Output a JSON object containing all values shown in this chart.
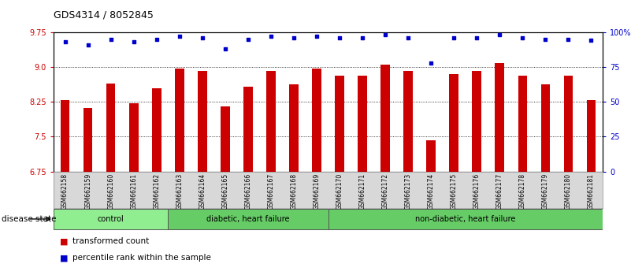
{
  "title": "GDS4314 / 8052845",
  "samples": [
    "GSM662158",
    "GSM662159",
    "GSM662160",
    "GSM662161",
    "GSM662162",
    "GSM662163",
    "GSM662164",
    "GSM662165",
    "GSM662166",
    "GSM662167",
    "GSM662168",
    "GSM662169",
    "GSM662170",
    "GSM662171",
    "GSM662172",
    "GSM662173",
    "GSM662174",
    "GSM662175",
    "GSM662176",
    "GSM662177",
    "GSM662178",
    "GSM662179",
    "GSM662180",
    "GSM662181"
  ],
  "bar_values": [
    8.28,
    8.12,
    8.65,
    8.22,
    8.55,
    8.97,
    8.92,
    8.15,
    8.58,
    8.92,
    8.62,
    8.97,
    8.82,
    8.82,
    9.05,
    8.92,
    7.42,
    8.85,
    8.92,
    9.08,
    8.82,
    8.62,
    8.82,
    8.28
  ],
  "percentile_values": [
    93,
    91,
    95,
    93,
    95,
    97,
    96,
    88,
    95,
    97,
    96,
    97,
    96,
    96,
    98,
    96,
    78,
    96,
    96,
    98,
    96,
    95,
    95,
    94
  ],
  "group_labels": [
    "control",
    "diabetic, heart failure",
    "non-diabetic, heart failure"
  ],
  "group_ranges": [
    [
      0,
      5
    ],
    [
      5,
      12
    ],
    [
      12,
      24
    ]
  ],
  "group_colors": [
    "#90ee90",
    "#66cc66",
    "#66cc66"
  ],
  "ylim_left": [
    6.75,
    9.75
  ],
  "yticks_left": [
    6.75,
    7.5,
    8.25,
    9.0,
    9.75
  ],
  "ylim_right": [
    0,
    100
  ],
  "yticks_right": [
    0,
    25,
    50,
    75,
    100
  ],
  "bar_color": "#cc0000",
  "dot_color": "#0000cc",
  "bar_width": 0.4,
  "background_color": "#ffffff",
  "plot_bg_color": "#ffffff",
  "legend_items": [
    {
      "label": "transformed count",
      "color": "#cc0000"
    },
    {
      "label": "percentile rank within the sample",
      "color": "#0000cc"
    }
  ]
}
